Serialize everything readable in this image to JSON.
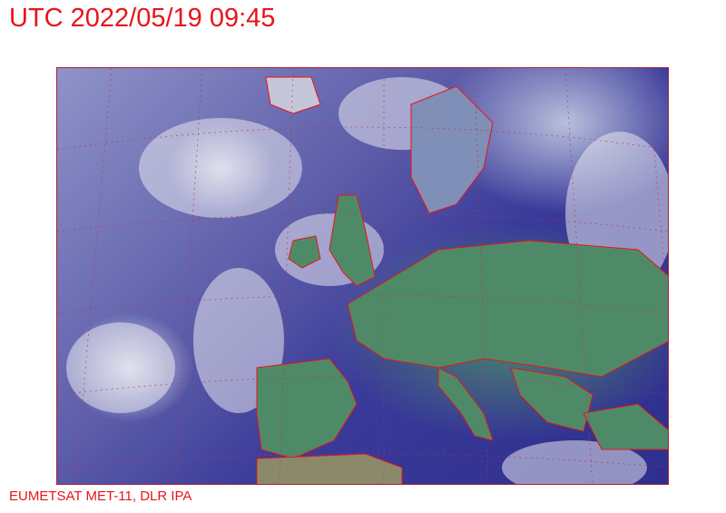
{
  "header": {
    "title": "UTC 2022/05/19 09:45"
  },
  "image": {
    "type": "satellite-composite",
    "region": "Europe and North Atlantic",
    "coastline_color": "#e8141a",
    "grid_color": "#c03050"
  },
  "footer": {
    "credit": "EUMETSAT MET-11, DLR IPA"
  }
}
